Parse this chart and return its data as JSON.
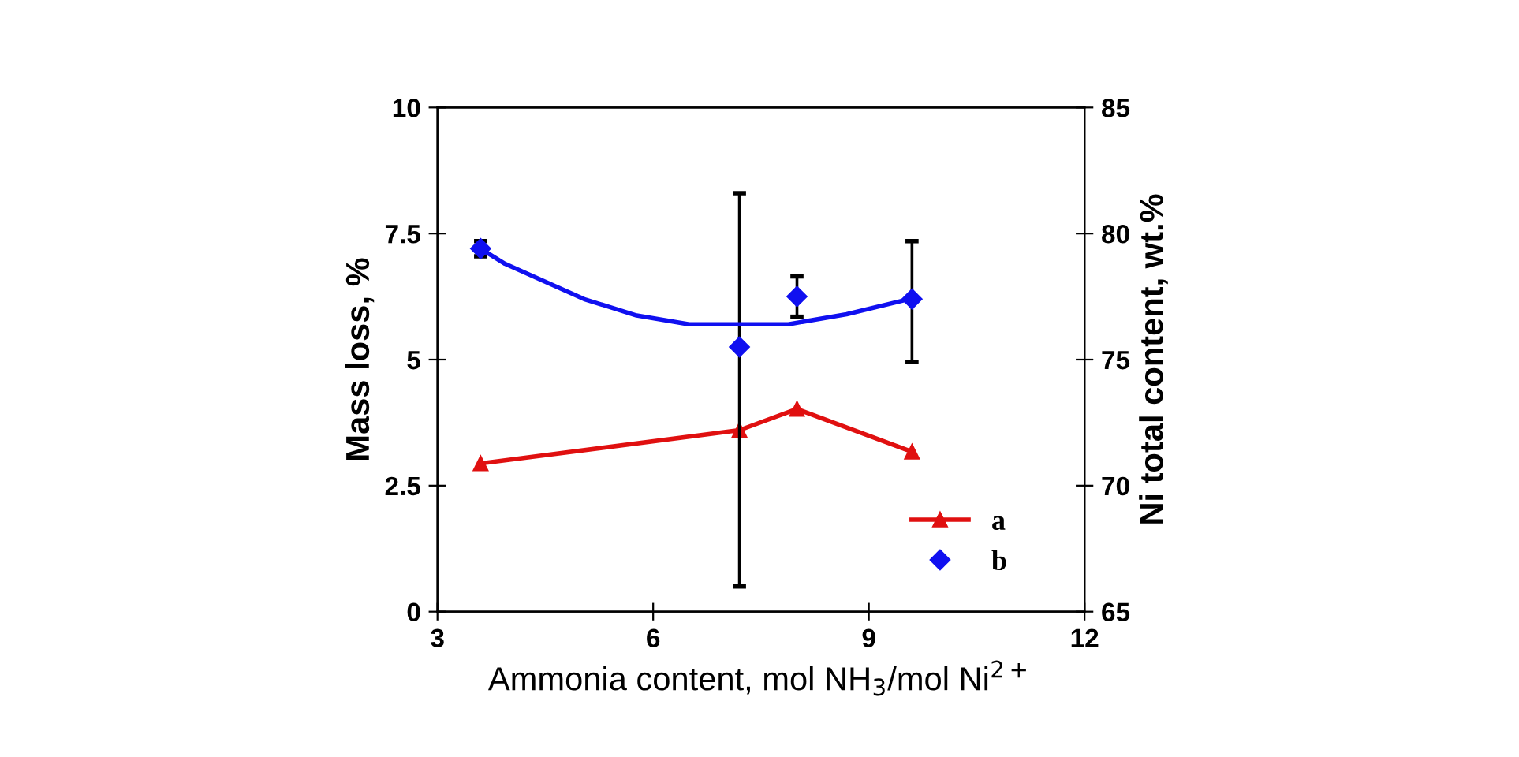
{
  "chart_data": {
    "type": "line",
    "xlabel": "Ammonia content, mol NH$_{3}$/mol Ni$^{2+}$",
    "ylabel": "Mass loss, %",
    "y2label": "Ni total content, wt.%",
    "xlim": [
      3,
      12
    ],
    "xticks": [
      3,
      6,
      9,
      12
    ],
    "ylim": [
      0,
      10
    ],
    "yticks": [
      0,
      2.5,
      5,
      7.5,
      10
    ],
    "y2lim": [
      65,
      85
    ],
    "y2ticks": [
      65,
      70,
      75,
      80,
      85
    ],
    "grid": false,
    "legend": "bottom right",
    "series": [
      {
        "name": "a",
        "color": "#e01010",
        "marker": "triangle",
        "x": [
          3.6,
          7.2,
          8.0,
          9.6
        ],
        "values": [
          2.94,
          3.6,
          4.02,
          3.17
        ]
      },
      {
        "name": "b",
        "type": "scatter",
        "axis": "y2",
        "color": "#1010f0",
        "marker": "diamond",
        "x": [
          3.6,
          7.2,
          8.0,
          9.6
        ],
        "values": [
          79.4,
          75.5,
          77.5,
          77.4
        ],
        "errors": [
          [
            79.1,
            79.7
          ],
          [
            66.0,
            81.6
          ],
          [
            76.7,
            78.3
          ],
          [
            74.9,
            79.7
          ]
        ]
      },
      {
        "type": "line",
        "axis": "y2",
        "color": "#1010f0",
        "marker": "none",
        "x": [
          3.6,
          3.94,
          5.04,
          5.77,
          6.5,
          7.88,
          8.69,
          9.56
        ],
        "values": [
          79.4,
          78.8,
          77.4,
          76.75,
          76.4,
          76.4,
          76.8,
          77.4
        ]
      }
    ]
  }
}
